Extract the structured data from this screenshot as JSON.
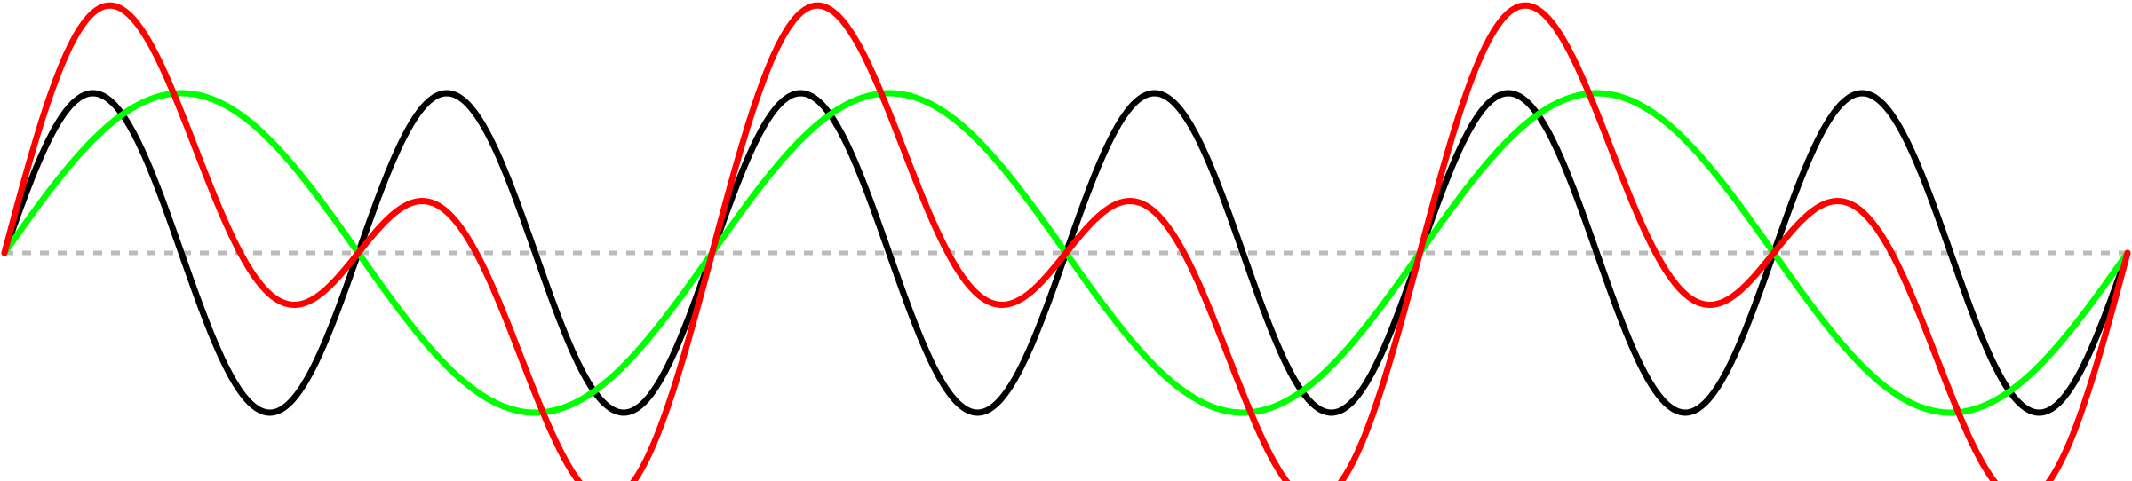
{
  "chart_data": {
    "type": "line",
    "title": "",
    "xlabel": "",
    "ylabel": "",
    "xlim": [
      0,
      3
    ],
    "ylim": [
      -1.6,
      1.6
    ],
    "grid": false,
    "baseline": {
      "y": 0,
      "style": "dashed",
      "color": "#bbbbbb"
    },
    "series": [
      {
        "key": "fundamental",
        "color": "#00ff00",
        "amplitude": 1,
        "frequency": 1,
        "phase": 0
      },
      {
        "key": "harmonic",
        "color": "#000000",
        "amplitude": 1,
        "frequency": 2,
        "phase": 0
      },
      {
        "key": "sum",
        "color": "#ff0000",
        "components": [
          "fundamental",
          "harmonic"
        ],
        "scale": 0.88
      }
    ]
  }
}
